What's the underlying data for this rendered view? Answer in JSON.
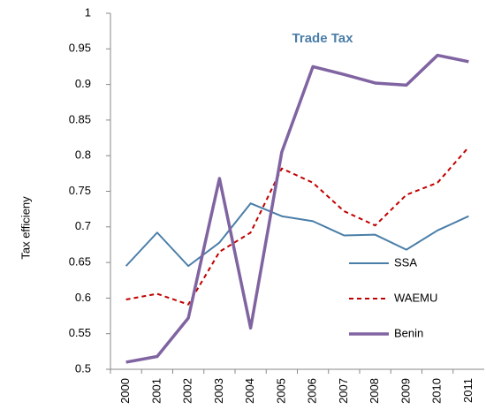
{
  "chart_data": {
    "type": "line",
    "title": "Trade Tax",
    "y_label": "Tax efficieny",
    "categories": [
      "2000",
      "2001",
      "2002",
      "2003",
      "2004",
      "2005",
      "2006",
      "2007",
      "2008",
      "2009",
      "2010",
      "2011"
    ],
    "series": [
      {
        "name": "SSA",
        "color": "#4a7ea8",
        "width": 2,
        "dash": false,
        "values": [
          0.645,
          0.692,
          0.645,
          0.678,
          0.733,
          0.715,
          0.708,
          0.688,
          0.689,
          0.668,
          0.695,
          0.715
        ]
      },
      {
        "name": "WAEMU",
        "color": "#c00000",
        "width": 2,
        "dash": true,
        "values": [
          0.598,
          0.606,
          0.591,
          0.665,
          0.692,
          0.782,
          0.762,
          0.722,
          0.702,
          0.745,
          0.762,
          0.812
        ]
      },
      {
        "name": "Benin",
        "color": "#8064a2",
        "width": 3.5,
        "dash": false,
        "values": [
          0.51,
          0.518,
          0.572,
          0.768,
          0.558,
          0.805,
          0.925,
          0.914,
          0.902,
          0.899,
          0.941,
          0.932
        ]
      }
    ],
    "ylim": [
      0.5,
      1
    ],
    "yticks": [
      0.5,
      0.55,
      0.6,
      0.65,
      0.7,
      0.75,
      0.8,
      0.85,
      0.9,
      0.95,
      1
    ],
    "grid": false,
    "legend": "right"
  }
}
